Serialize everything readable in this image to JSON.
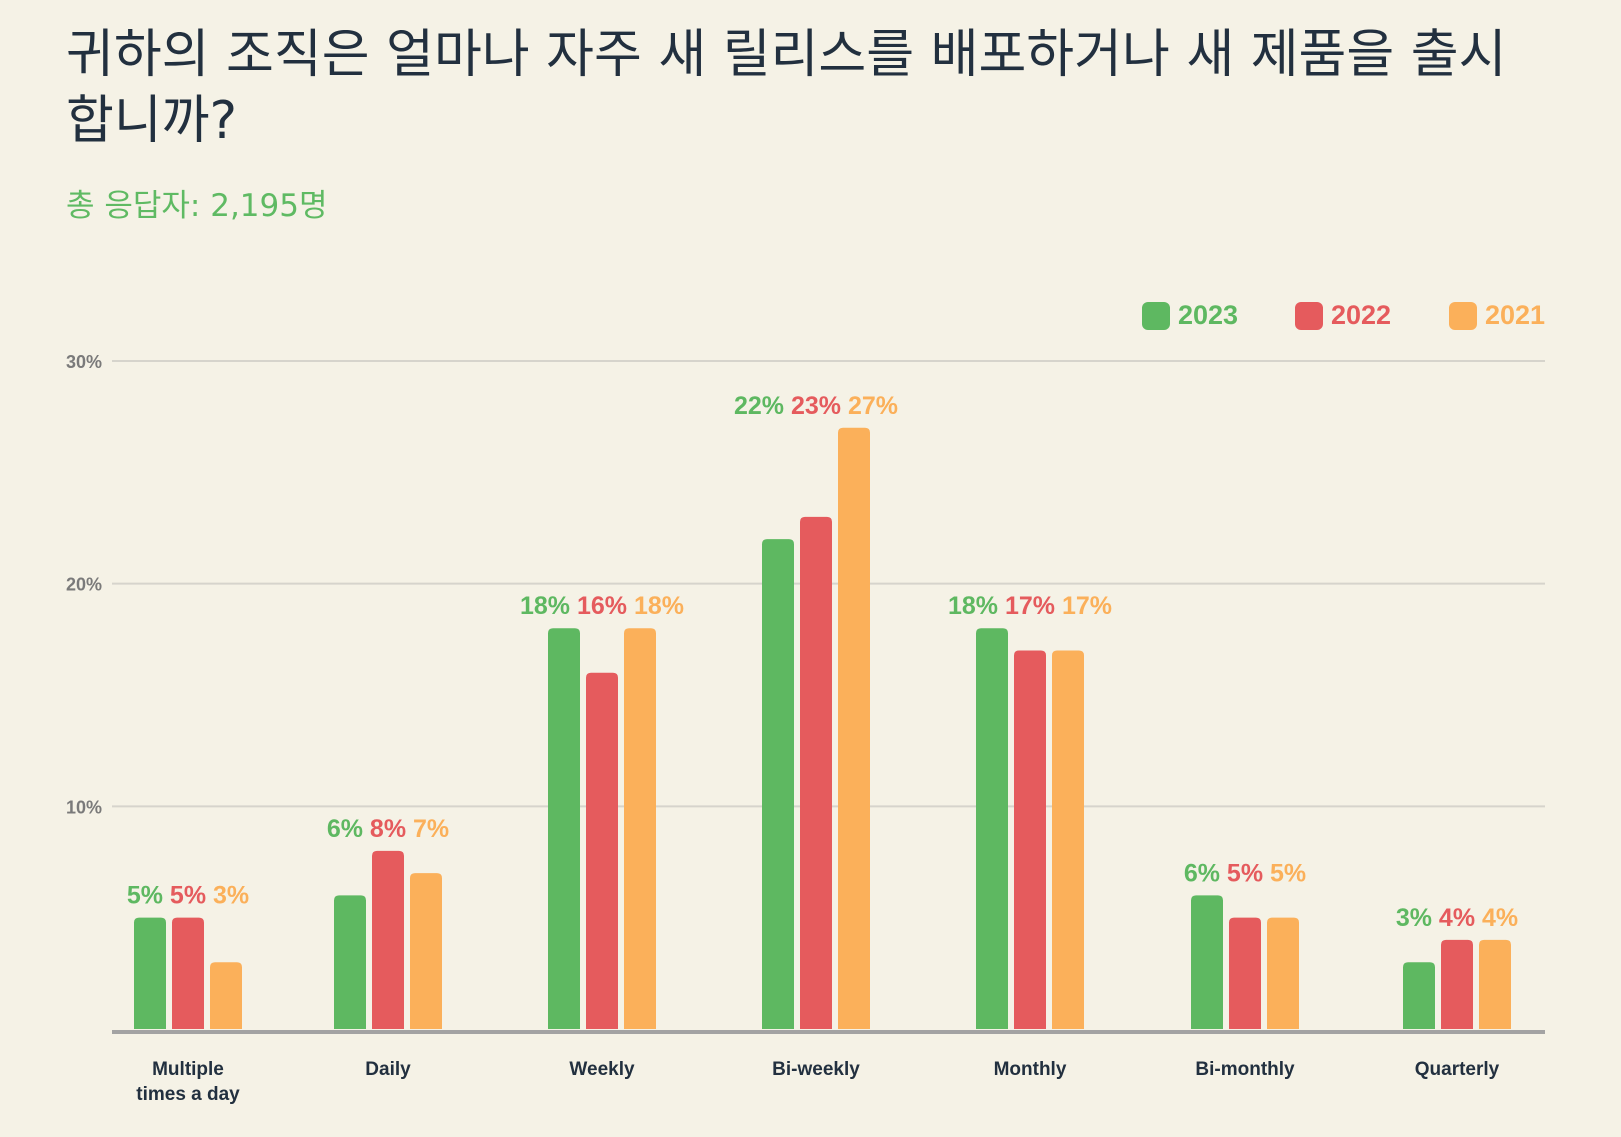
{
  "title": "귀하의 조직은 얼마나 자주 새 릴리스를 배포하거나 새 제품을 출시합니까?",
  "subtitle": "총 응답자: 2,195명",
  "colors": {
    "2023": "#5eb861",
    "2022": "#e55b5d",
    "2021": "#fbb05a",
    "axis": "#a3a3a3",
    "grid": "#d6d4cc",
    "tick": "#7a7a7a",
    "category": "#22303f"
  },
  "chart_data": {
    "type": "bar",
    "categories": [
      "Multiple times a day",
      "Daily",
      "Weekly",
      "Bi-weekly",
      "Monthly",
      "Bi-monthly",
      "Quarterly"
    ],
    "series": [
      {
        "name": "2023",
        "values": [
          5,
          6,
          18,
          22,
          18,
          6,
          3
        ],
        "labels": [
          "5%",
          "6%",
          "18%",
          "22%",
          "18%",
          "6%",
          "3%"
        ]
      },
      {
        "name": "2022",
        "values": [
          5,
          8,
          16,
          23,
          17,
          5,
          4
        ],
        "labels": [
          "5%",
          "8%",
          "16%",
          "23%",
          "17%",
          "5%",
          "4%"
        ]
      },
      {
        "name": "2021",
        "values": [
          3,
          7,
          18,
          27,
          17,
          5,
          4
        ],
        "labels": [
          "3%",
          "7%",
          "18%",
          "27%",
          "17%",
          "5%",
          "4%"
        ]
      }
    ],
    "ylim": [
      0,
      30
    ],
    "yticks": [
      10,
      20,
      30
    ],
    "ytick_labels": [
      "10%",
      "20%",
      "30%"
    ],
    "grid": true,
    "legend_position": "top-right"
  }
}
